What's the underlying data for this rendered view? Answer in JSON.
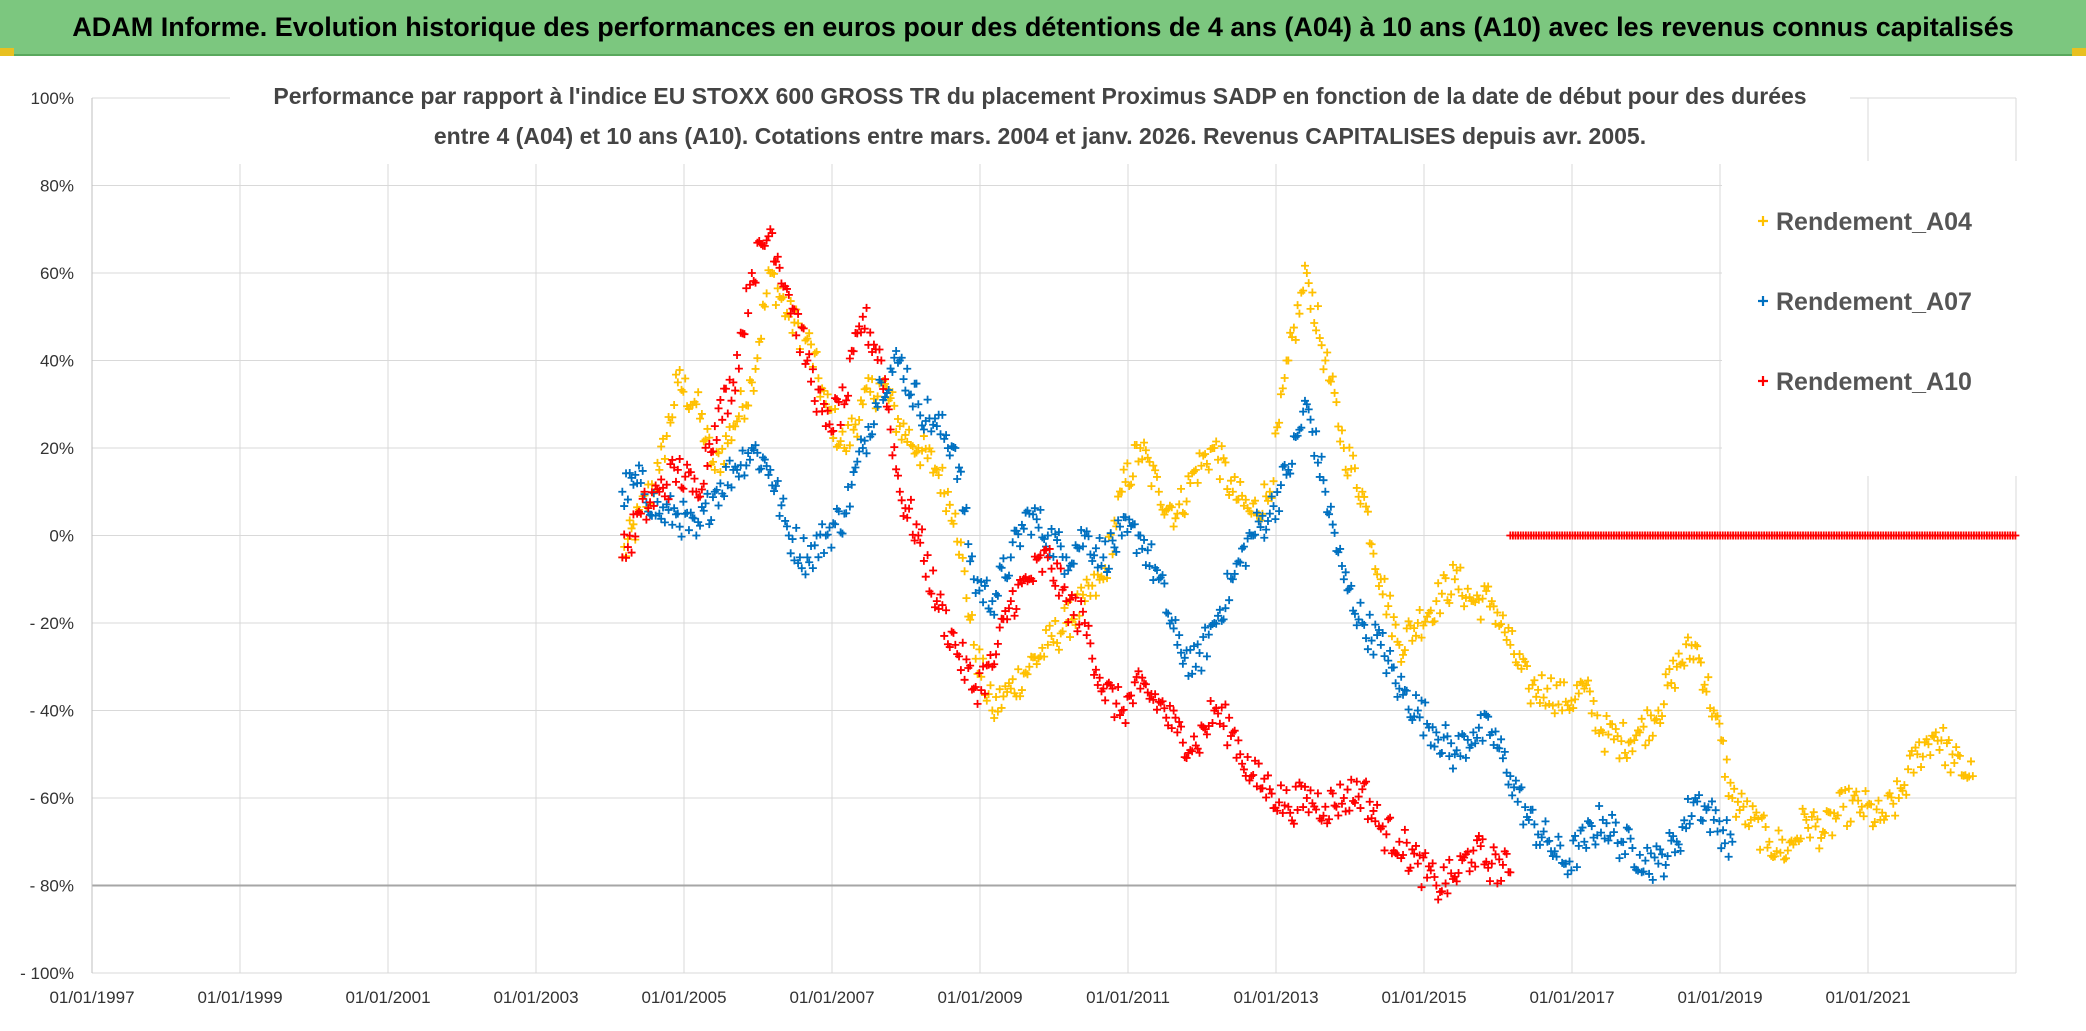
{
  "banner": {
    "title": "ADAM Informe. Evolution historique des performances en euros pour des détentions de 4 ans (A04) à 10 ans (A10) avec les revenus connus capitalisés"
  },
  "colors": {
    "banner_bg": "#7cc77f",
    "A04": "#ffc000",
    "A07": "#0070c0",
    "A10": "#ff0000"
  },
  "chart_data": {
    "type": "scatter",
    "title_line1": "Performance par rapport à l'indice EU STOXX 600 GROSS TR  du placement Proximus SADP en fonction de la date de début pour des durées",
    "title_line2": "entre 4 (A04) et 10 ans (A10). Cotations entre mars. 2004 et janv. 2026. Revenus CAPITALISES depuis avr. 2005.",
    "x_range": [
      "1997-01-01",
      "2023-01-01"
    ],
    "x_ticks": [
      "01/01/1997",
      "01/01/1999",
      "01/01/2001",
      "01/01/2003",
      "01/01/2005",
      "01/01/2007",
      "01/01/2009",
      "01/01/2011",
      "01/01/2013",
      "01/01/2015",
      "01/01/2017",
      "01/01/2019",
      "01/01/2021"
    ],
    "ylim": [
      -100,
      100
    ],
    "y_ticks": [
      {
        "v": 100,
        "label": "100%"
      },
      {
        "v": 80,
        "label": "80%"
      },
      {
        "v": 60,
        "label": "60%"
      },
      {
        "v": 40,
        "label": "40%"
      },
      {
        "v": 20,
        "label": "20%"
      },
      {
        "v": 0,
        "label": "0%"
      },
      {
        "v": -20,
        "label": "- 20%"
      },
      {
        "v": -40,
        "label": "- 40%"
      },
      {
        "v": -60,
        "label": "- 60%"
      },
      {
        "v": -80,
        "label": "- 80%"
      },
      {
        "v": -100,
        "label": "- 100%"
      }
    ],
    "grid": true,
    "legend_position": "top-right",
    "series": [
      {
        "name": "Rendement_A04",
        "color": "#ffc000",
        "points": [
          [
            "2004-03",
            -5
          ],
          [
            "2004-06",
            5
          ],
          [
            "2004-09",
            15
          ],
          [
            "2004-12",
            35
          ],
          [
            "2005-03",
            30
          ],
          [
            "2005-06",
            15
          ],
          [
            "2005-09",
            25
          ],
          [
            "2005-12",
            35
          ],
          [
            "2006-03",
            60
          ],
          [
            "2006-06",
            50
          ],
          [
            "2006-09",
            45
          ],
          [
            "2006-12",
            30
          ],
          [
            "2007-03",
            20
          ],
          [
            "2007-06",
            30
          ],
          [
            "2007-09",
            35
          ],
          [
            "2007-12",
            25
          ],
          [
            "2008-03",
            20
          ],
          [
            "2008-06",
            15
          ],
          [
            "2008-09",
            5
          ],
          [
            "2008-12",
            -25
          ],
          [
            "2009-03",
            -40
          ],
          [
            "2009-06",
            -35
          ],
          [
            "2009-09",
            -30
          ],
          [
            "2009-12",
            -25
          ],
          [
            "2010-03",
            -20
          ],
          [
            "2010-06",
            -15
          ],
          [
            "2010-09",
            -10
          ],
          [
            "2010-12",
            10
          ],
          [
            "2011-03",
            20
          ],
          [
            "2011-06",
            10
          ],
          [
            "2011-09",
            5
          ],
          [
            "2011-12",
            15
          ],
          [
            "2012-03",
            20
          ],
          [
            "2012-06",
            10
          ],
          [
            "2012-09",
            5
          ],
          [
            "2012-12",
            10
          ],
          [
            "2013-03",
            40
          ],
          [
            "2013-06",
            60
          ],
          [
            "2013-09",
            40
          ],
          [
            "2013-12",
            20
          ],
          [
            "2014-03",
            10
          ],
          [
            "2014-06",
            -10
          ],
          [
            "2014-09",
            -25
          ],
          [
            "2014-12",
            -20
          ],
          [
            "2015-03",
            -15
          ],
          [
            "2015-06",
            -10
          ],
          [
            "2015-09",
            -15
          ],
          [
            "2015-12",
            -15
          ],
          [
            "2016-03",
            -25
          ],
          [
            "2016-06",
            -35
          ],
          [
            "2016-09",
            -35
          ],
          [
            "2016-12",
            -38
          ],
          [
            "2017-03",
            -35
          ],
          [
            "2017-06",
            -45
          ],
          [
            "2017-09",
            -47
          ],
          [
            "2017-12",
            -45
          ],
          [
            "2018-03",
            -40
          ],
          [
            "2018-06",
            -30
          ],
          [
            "2018-09",
            -25
          ],
          [
            "2018-12",
            -40
          ],
          [
            "2019-03",
            -60
          ],
          [
            "2019-06",
            -65
          ],
          [
            "2019-09",
            -70
          ],
          [
            "2019-12",
            -72
          ],
          [
            "2020-03",
            -65
          ],
          [
            "2020-06",
            -68
          ],
          [
            "2020-09",
            -62
          ],
          [
            "2020-12",
            -62
          ],
          [
            "2021-03",
            -65
          ],
          [
            "2021-06",
            -60
          ],
          [
            "2021-09",
            -50
          ],
          [
            "2021-12",
            -45
          ],
          [
            "2022-03",
            -52
          ],
          [
            "2022-06",
            -55
          ]
        ]
      },
      {
        "name": "Rendement_A07",
        "color": "#0070c0",
        "points": [
          [
            "2004-03",
            10
          ],
          [
            "2004-06",
            12
          ],
          [
            "2004-09",
            5
          ],
          [
            "2004-12",
            5
          ],
          [
            "2005-03",
            0
          ],
          [
            "2005-06",
            10
          ],
          [
            "2005-09",
            15
          ],
          [
            "2005-12",
            20
          ],
          [
            "2006-03",
            15
          ],
          [
            "2006-06",
            0
          ],
          [
            "2006-09",
            -5
          ],
          [
            "2006-12",
            0
          ],
          [
            "2007-03",
            5
          ],
          [
            "2007-06",
            20
          ],
          [
            "2007-09",
            35
          ],
          [
            "2007-12",
            40
          ],
          [
            "2008-03",
            30
          ],
          [
            "2008-06",
            25
          ],
          [
            "2008-09",
            20
          ],
          [
            "2008-12",
            -10
          ],
          [
            "2009-03",
            -15
          ],
          [
            "2009-06",
            -5
          ],
          [
            "2009-09",
            5
          ],
          [
            "2009-12",
            0
          ],
          [
            "2010-03",
            -5
          ],
          [
            "2010-06",
            0
          ],
          [
            "2010-09",
            -5
          ],
          [
            "2010-12",
            0
          ],
          [
            "2011-03",
            0
          ],
          [
            "2011-06",
            -10
          ],
          [
            "2011-09",
            -25
          ],
          [
            "2011-12",
            -30
          ],
          [
            "2012-03",
            -20
          ],
          [
            "2012-06",
            -10
          ],
          [
            "2012-09",
            0
          ],
          [
            "2012-12",
            5
          ],
          [
            "2013-03",
            15
          ],
          [
            "2013-06",
            30
          ],
          [
            "2013-09",
            10
          ],
          [
            "2013-12",
            -10
          ],
          [
            "2014-03",
            -20
          ],
          [
            "2014-06",
            -25
          ],
          [
            "2014-09",
            -35
          ],
          [
            "2014-12",
            -40
          ],
          [
            "2015-03",
            -45
          ],
          [
            "2015-06",
            -50
          ],
          [
            "2015-09",
            -45
          ],
          [
            "2015-12",
            -45
          ],
          [
            "2016-03",
            -55
          ],
          [
            "2016-06",
            -65
          ],
          [
            "2016-09",
            -70
          ],
          [
            "2016-12",
            -75
          ],
          [
            "2017-03",
            -70
          ],
          [
            "2017-06",
            -65
          ],
          [
            "2017-09",
            -70
          ],
          [
            "2017-12",
            -73
          ],
          [
            "2018-03",
            -75
          ],
          [
            "2018-06",
            -70
          ],
          [
            "2018-09",
            -60
          ],
          [
            "2018-12",
            -65
          ],
          [
            "2019-03",
            -70
          ]
        ]
      },
      {
        "name": "Rendement_A10",
        "color": "#ff0000",
        "points": [
          [
            "2004-03",
            -5
          ],
          [
            "2004-06",
            5
          ],
          [
            "2004-09",
            10
          ],
          [
            "2004-12",
            15
          ],
          [
            "2005-03",
            10
          ],
          [
            "2005-06",
            25
          ],
          [
            "2005-09",
            35
          ],
          [
            "2005-12",
            60
          ],
          [
            "2006-03",
            70
          ],
          [
            "2006-06",
            55
          ],
          [
            "2006-09",
            40
          ],
          [
            "2006-12",
            25
          ],
          [
            "2007-03",
            30
          ],
          [
            "2007-06",
            50
          ],
          [
            "2007-09",
            40
          ],
          [
            "2007-12",
            10
          ],
          [
            "2008-03",
            0
          ],
          [
            "2008-06",
            -15
          ],
          [
            "2008-09",
            -25
          ],
          [
            "2008-12",
            -35
          ],
          [
            "2009-03",
            -30
          ],
          [
            "2009-06",
            -15
          ],
          [
            "2009-09",
            -10
          ],
          [
            "2009-12",
            -5
          ],
          [
            "2010-03",
            -15
          ],
          [
            "2010-06",
            -20
          ],
          [
            "2010-09",
            -35
          ],
          [
            "2010-12",
            -40
          ],
          [
            "2011-03",
            -35
          ],
          [
            "2011-06",
            -38
          ],
          [
            "2011-09",
            -45
          ],
          [
            "2011-12",
            -48
          ],
          [
            "2012-03",
            -40
          ],
          [
            "2012-06",
            -45
          ],
          [
            "2012-09",
            -55
          ],
          [
            "2012-12",
            -58
          ],
          [
            "2013-03",
            -62
          ],
          [
            "2013-06",
            -60
          ],
          [
            "2013-09",
            -62
          ],
          [
            "2013-12",
            -60
          ],
          [
            "2014-03",
            -58
          ],
          [
            "2014-06",
            -67
          ],
          [
            "2014-09",
            -70
          ],
          [
            "2014-12",
            -75
          ],
          [
            "2015-03",
            -80
          ],
          [
            "2015-06",
            -78
          ],
          [
            "2015-09",
            -72
          ],
          [
            "2015-12",
            -75
          ],
          [
            "2016-03",
            -77
          ]
        ],
        "flat_segment": {
          "from": "2016-03",
          "to": "2023-01",
          "value": 0
        }
      }
    ]
  }
}
